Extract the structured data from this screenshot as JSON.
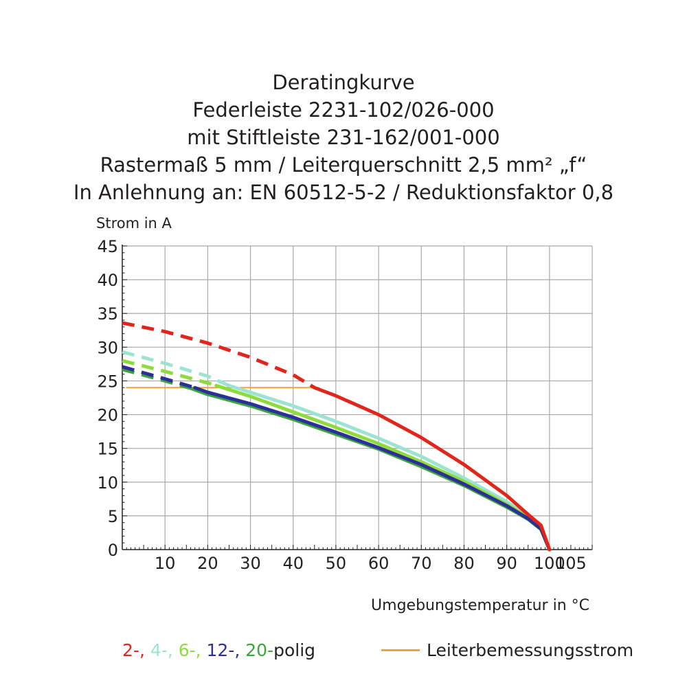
{
  "title_lines": [
    "Deratingkurve",
    "Federleiste 2231-102/026-000",
    "mit Stiftleiste 231-162/001-000",
    "Rastermaß 5 mm / Leiterquerschnitt 2,5 mm² „f“",
    "In Anlehnung an: EN 60512-5-2 / Reduktionsfaktor 0,8"
  ],
  "colors": {
    "red": "#e1251b",
    "cyan": "#9de3d4",
    "lightgreen": "#8ddc3c",
    "blue": "#2b2f97",
    "green": "#3aa53a",
    "orange": "#f7a039",
    "grid": "#a7a9ac",
    "axis": "#231f20"
  },
  "chart_data": {
    "type": "line",
    "ylabel": "Strom in A",
    "xlabel": "Umgebungstemperatur in °C",
    "xlim": [
      0,
      110
    ],
    "ylim": [
      0,
      45
    ],
    "x_ticks": [
      10,
      20,
      30,
      40,
      50,
      60,
      70,
      80,
      90,
      100,
      105
    ],
    "y_ticks": [
      0,
      5,
      10,
      15,
      20,
      25,
      30,
      35,
      40,
      45
    ],
    "grid": true,
    "series": [
      {
        "name": "2-",
        "color": "red",
        "dashed": [
          [
            0,
            33.6
          ],
          [
            10,
            32.3
          ],
          [
            20,
            30.6
          ],
          [
            30,
            28.5
          ],
          [
            40,
            25.9
          ],
          [
            45,
            24.0
          ]
        ],
        "solid": [
          [
            45,
            24.0
          ],
          [
            50,
            22.8
          ],
          [
            60,
            20.0
          ],
          [
            70,
            16.6
          ],
          [
            80,
            12.6
          ],
          [
            90,
            8.0
          ],
          [
            95,
            5.2
          ],
          [
            98,
            3.6
          ],
          [
            100,
            0
          ]
        ]
      },
      {
        "name": "4-",
        "color": "cyan",
        "dashed": [
          [
            0,
            29.3
          ],
          [
            10,
            27.6
          ],
          [
            20,
            25.7
          ],
          [
            25,
            24.3
          ]
        ],
        "solid": [
          [
            25,
            24.3
          ],
          [
            30,
            23.3
          ],
          [
            40,
            21.3
          ],
          [
            50,
            19.0
          ],
          [
            60,
            16.5
          ],
          [
            70,
            13.8
          ],
          [
            80,
            10.6
          ],
          [
            90,
            7.1
          ],
          [
            95,
            5.0
          ],
          [
            98,
            3.3
          ],
          [
            100,
            0
          ]
        ]
      },
      {
        "name": "6-",
        "color": "lightgreen",
        "dashed": [
          [
            0,
            28.0
          ],
          [
            10,
            26.4
          ],
          [
            20,
            24.7
          ],
          [
            22,
            24.3
          ]
        ],
        "solid": [
          [
            22,
            24.3
          ],
          [
            30,
            22.7
          ],
          [
            40,
            20.4
          ],
          [
            50,
            18.1
          ],
          [
            60,
            15.7
          ],
          [
            70,
            13.0
          ],
          [
            80,
            10.1
          ],
          [
            90,
            6.7
          ],
          [
            95,
            4.8
          ],
          [
            98,
            3.2
          ],
          [
            100,
            0
          ]
        ]
      },
      {
        "name": "12-",
        "color": "blue",
        "dashed": [
          [
            0,
            27.1
          ],
          [
            10,
            25.3
          ],
          [
            17,
            24.0
          ]
        ],
        "solid": [
          [
            17,
            24.0
          ],
          [
            20,
            23.3
          ],
          [
            30,
            21.6
          ],
          [
            40,
            19.6
          ],
          [
            50,
            17.4
          ],
          [
            60,
            15.1
          ],
          [
            70,
            12.6
          ],
          [
            80,
            9.7
          ],
          [
            90,
            6.5
          ],
          [
            95,
            4.6
          ],
          [
            98,
            3.1
          ],
          [
            100,
            0
          ]
        ]
      },
      {
        "name": "20-polig",
        "color": "green",
        "dashed": [
          [
            0,
            26.7
          ],
          [
            10,
            25.0
          ],
          [
            16,
            23.9
          ]
        ],
        "solid": [
          [
            16,
            23.9
          ],
          [
            20,
            23.0
          ],
          [
            30,
            21.3
          ],
          [
            40,
            19.3
          ],
          [
            50,
            17.1
          ],
          [
            60,
            14.9
          ],
          [
            70,
            12.3
          ],
          [
            80,
            9.5
          ],
          [
            90,
            6.3
          ],
          [
            95,
            4.5
          ],
          [
            98,
            3.0
          ],
          [
            100,
            0
          ]
        ]
      },
      {
        "name": "Leiterbemessungsstrom",
        "color": "orange",
        "solid": [
          [
            1,
            24.0
          ],
          [
            46,
            24.0
          ]
        ]
      }
    ]
  },
  "legend": {
    "items": [
      {
        "text": "2-",
        "color": "red"
      },
      {
        "text": ", ",
        "color": "red"
      },
      {
        "text": "4-",
        "color": "cyan"
      },
      {
        "text": ", ",
        "color": "cyan"
      },
      {
        "text": "6-",
        "color": "lightgreen"
      },
      {
        "text": ", ",
        "color": "lightgreen"
      },
      {
        "text": "12-",
        "color": "blue"
      },
      {
        "text": ", ",
        "color": "blue"
      },
      {
        "text": "20-",
        "color": "green"
      },
      {
        "text": "polig",
        "color": "axis"
      }
    ],
    "rated_current_label": "Leiterbemessungsstrom"
  }
}
